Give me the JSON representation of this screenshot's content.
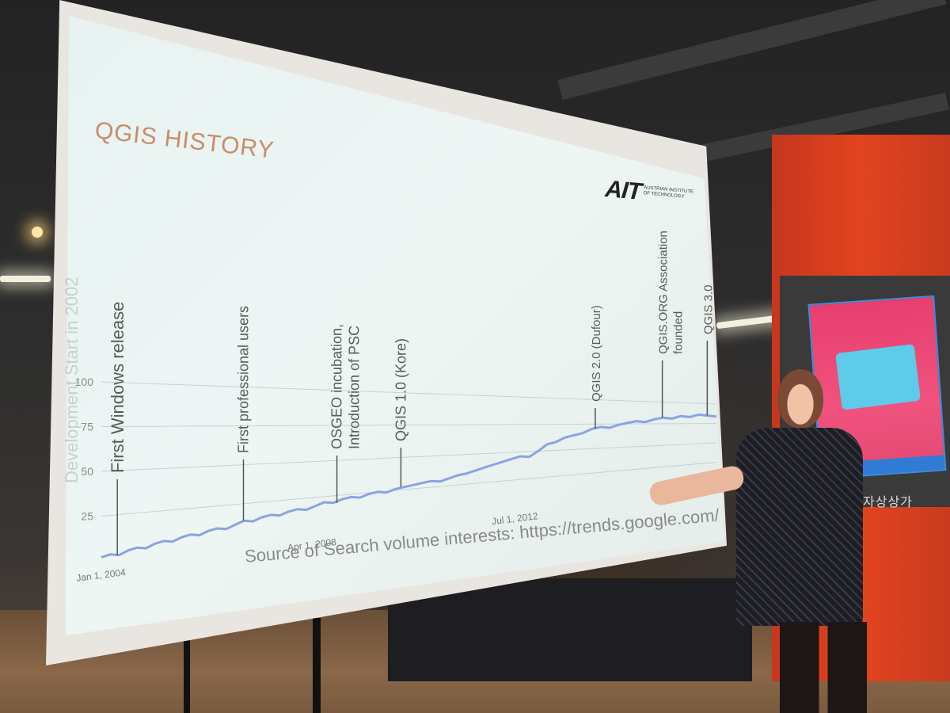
{
  "slide": {
    "title": "QGIS HISTORY",
    "logo_mark": "AIT",
    "logo_text_line1": "AUSTRIAN INSTITUTE",
    "logo_text_line2": "OF TECHNOLOGY",
    "watermark": "Development Start in 2002",
    "source": "Source of Search volume interests: https://trends.google.com/"
  },
  "chart_data": {
    "type": "line",
    "y_ticks": [
      "100",
      "75",
      "50",
      "25"
    ],
    "x_ticks": [
      "Jan 1, 2004",
      "Apr 1, 2008",
      "Jul 1, 2012"
    ],
    "ylim": [
      0,
      100
    ],
    "line_color": "#8aa4e0",
    "grid": true,
    "series": [
      {
        "values": [
          2,
          3,
          2,
          4,
          5,
          4,
          6,
          7,
          6,
          8,
          9,
          8,
          10,
          11,
          10,
          12,
          14,
          13,
          15,
          16,
          15,
          17,
          18,
          17,
          19,
          21,
          20,
          22,
          23,
          22,
          24,
          25,
          24,
          26,
          27,
          28,
          29,
          30,
          29,
          31,
          33,
          34,
          36,
          38,
          40,
          42,
          44,
          46,
          45,
          50,
          56,
          58,
          62,
          64,
          66,
          70,
          72,
          71,
          74,
          76,
          78,
          77,
          80,
          82,
          81,
          84,
          83,
          86,
          85,
          84
        ]
      }
    ],
    "annotations": [
      {
        "label": "First Windows release"
      },
      {
        "label": "First professional users"
      },
      {
        "label": "OSGEO incubation,",
        "label2": "Introduction of PSC"
      },
      {
        "label": "QGIS 1.0 (Kore)"
      },
      {
        "label": "QGIS 2.0 (Dufour)"
      },
      {
        "label": "QGIS.ORG Association",
        "label2": "founded"
      },
      {
        "label": "QGIS 3.0"
      }
    ]
  },
  "room": {
    "pillar_text": "자상상가"
  }
}
